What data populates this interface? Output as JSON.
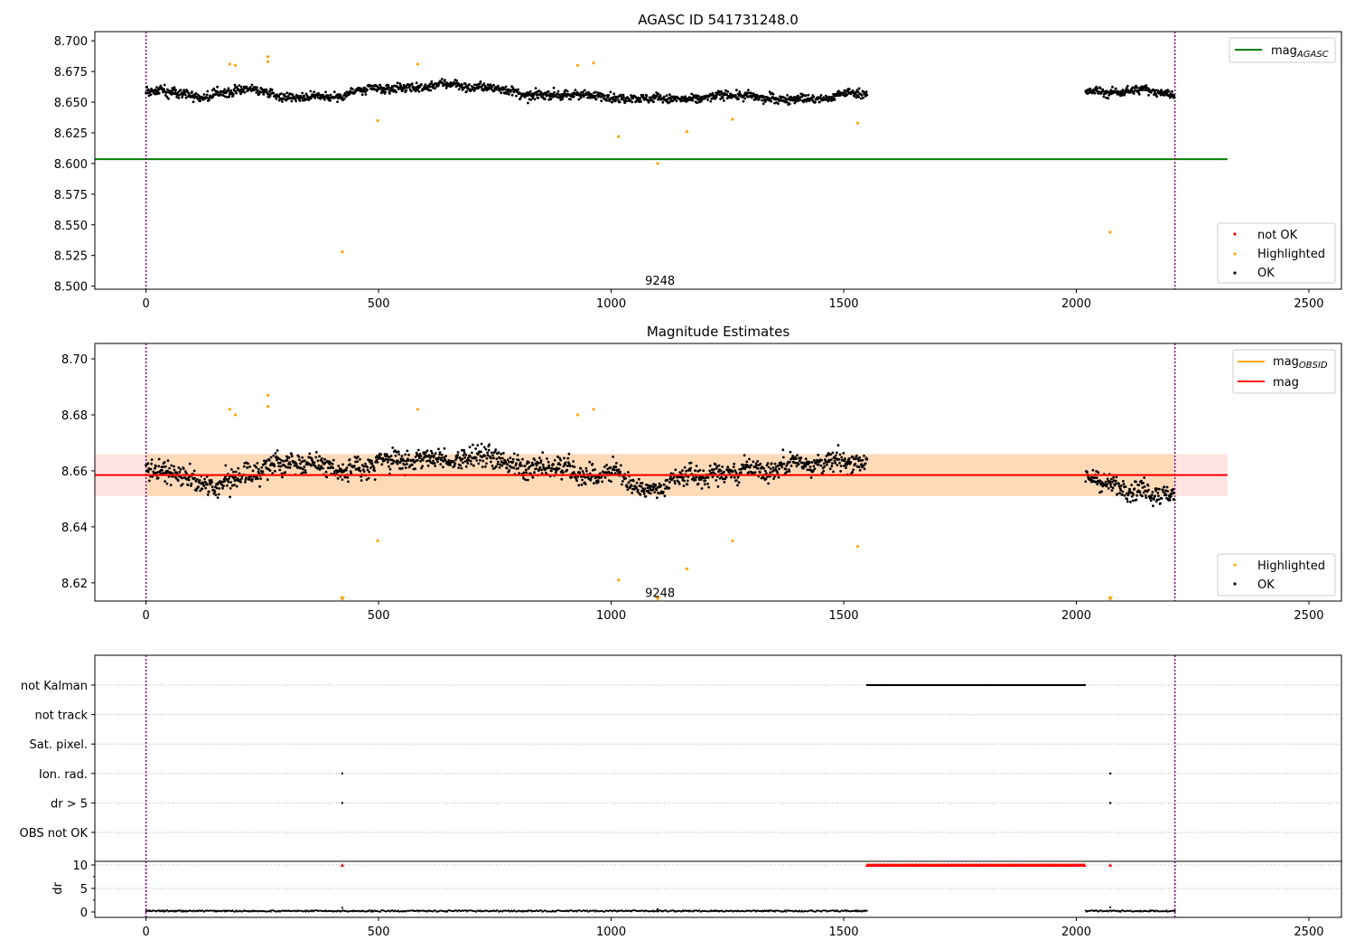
{
  "chart_data": [
    {
      "type": "scatter",
      "title": "AGASC ID 541731248.0",
      "xlabel": "",
      "ylabel": "",
      "xlim": [
        -110,
        2570
      ],
      "ylim": [
        8.4975,
        8.7075
      ],
      "xticks": [
        0,
        500,
        1000,
        1500,
        2000,
        2500
      ],
      "yticks": [
        8.5,
        8.525,
        8.55,
        8.575,
        8.6,
        8.625,
        8.65,
        8.675,
        8.7
      ],
      "ytick_labels": [
        "8.500",
        "8.525",
        "8.550",
        "8.575",
        "8.600",
        "8.625",
        "8.650",
        "8.675",
        "8.700"
      ],
      "obsid_boundaries": [
        0,
        2212
      ],
      "obsid_annotation": {
        "text": "9248",
        "x": 1105,
        "y": 8.505
      },
      "series": [
        {
          "name": "mag",
          "sub": "AGASC",
          "type": "line",
          "color": "#008000",
          "x": [
            -110,
            2325
          ],
          "y": [
            8.6035,
            8.6035
          ]
        },
        {
          "name": "not OK",
          "type": "scatter",
          "color": "#ff0000",
          "points": []
        },
        {
          "name": "Highlighted",
          "type": "scatter",
          "color": "#ffa500",
          "points": [
            [
              180,
              8.681
            ],
            [
              192,
              8.68
            ],
            [
              262,
              8.687
            ],
            [
              262,
              8.683
            ],
            [
              422,
              8.528
            ],
            [
              498,
              8.635
            ],
            [
              584,
              8.681
            ],
            [
              928,
              8.68
            ],
            [
              962,
              8.682
            ],
            [
              1016,
              8.622
            ],
            [
              1100,
              8.6
            ],
            [
              1163,
              8.626
            ],
            [
              1261,
              8.636
            ],
            [
              1530,
              8.633
            ],
            [
              2073,
              8.544
            ]
          ]
        },
        {
          "name": "OK",
          "type": "scatter",
          "color": "#000000",
          "segments": [
            [
              0,
              920,
              8.6595,
              0.008
            ],
            [
              920,
              1550,
              8.658,
              0.0075
            ],
            [
              2020,
              2212,
              8.657,
              0.0075
            ]
          ]
        }
      ],
      "legends": [
        {
          "position": "upper right",
          "entries": [
            "mag_AGASC"
          ]
        },
        {
          "position": "lower right",
          "entries": [
            "not OK",
            "Highlighted",
            "OK"
          ]
        }
      ]
    },
    {
      "type": "scatter",
      "title": "Magnitude Estimates",
      "xlabel": "",
      "ylabel": "",
      "xlim": [
        -110,
        2570
      ],
      "ylim": [
        8.6135,
        8.7055
      ],
      "xticks": [
        0,
        500,
        1000,
        1500,
        2000,
        2500
      ],
      "yticks": [
        8.62,
        8.64,
        8.66,
        8.68,
        8.7
      ],
      "ytick_labels": [
        "8.62",
        "8.64",
        "8.66",
        "8.68",
        "8.70"
      ],
      "obsid_boundaries": [
        0,
        2212
      ],
      "obsid_annotation": {
        "text": "9248",
        "x": 1105,
        "y": 8.6165
      },
      "mag_band": {
        "center": 8.6585,
        "low": 8.651,
        "high": 8.666,
        "x": [
          -110,
          2325
        ]
      },
      "series": [
        {
          "name": "mag",
          "sub": "OBSID",
          "type": "line",
          "color": "#ffa500",
          "x": [
            0,
            2212
          ],
          "y": [
            8.6585,
            8.6585
          ]
        },
        {
          "name": "mag",
          "type": "line",
          "color": "#ff0000",
          "x": [
            -110,
            2325
          ],
          "y": [
            8.6585,
            8.6585
          ]
        },
        {
          "name": "Highlighted",
          "type": "scatter",
          "color": "#ffa500",
          "points": [
            [
              180,
              8.682
            ],
            [
              192,
              8.68
            ],
            [
              262,
              8.687
            ],
            [
              262,
              8.683
            ],
            [
              498,
              8.635
            ],
            [
              584,
              8.682
            ],
            [
              928,
              8.68
            ],
            [
              962,
              8.682
            ],
            [
              1016,
              8.621
            ],
            [
              1163,
              8.625
            ],
            [
              1261,
              8.635
            ],
            [
              1530,
              8.633
            ]
          ],
          "clipped_below": [
            422,
            1100,
            2073
          ]
        },
        {
          "name": "OK",
          "type": "scatter",
          "color": "#000000",
          "segments": [
            [
              0,
              920,
              8.6595,
              0.008
            ],
            [
              920,
              1550,
              8.658,
              0.0075
            ],
            [
              2020,
              2212,
              8.657,
              0.0075
            ]
          ]
        }
      ],
      "legends": [
        {
          "position": "upper right",
          "entries": [
            "mag_OBSID",
            "mag"
          ]
        },
        {
          "position": "lower right",
          "entries": [
            "Highlighted",
            "OK"
          ]
        }
      ]
    },
    {
      "type": "scatter",
      "title": "",
      "xlabel": "",
      "ylabel": "",
      "xlim": [
        -110,
        2570
      ],
      "xticks": [
        0,
        500,
        1000,
        1500,
        2000,
        2500
      ],
      "obsid_boundaries": [
        0,
        2212
      ],
      "flags": [
        "not Kalman",
        "not track",
        "Sat. pixel.",
        "Ion. rad.",
        "dr > 5",
        "OBS not OK"
      ],
      "flag_points": {
        "not Kalman": [
          [
            1550,
            2020
          ]
        ],
        "not track": [],
        "Sat. pixel.": [],
        "Ion. rad.": [
          422,
          2073
        ],
        "dr > 5": [
          422,
          2073
        ],
        "OBS not OK": []
      }
    },
    {
      "type": "scatter",
      "title": "",
      "xlabel": "",
      "ylabel": "dr",
      "xlim": [
        -110,
        2570
      ],
      "ylim": [
        -0.5,
        10.5
      ],
      "xticks": [
        0,
        500,
        1000,
        1500,
        2000,
        2500
      ],
      "yticks": [
        0,
        5,
        10
      ],
      "obsid_boundaries": [
        0,
        2212
      ],
      "series": [
        {
          "name": "dr",
          "type": "scatter",
          "color": "#000000",
          "range": [
            [
              0,
              1550
            ],
            [
              2020,
              2212
            ]
          ],
          "typical": 0.2,
          "spikes": [
            [
              422,
              0.9
            ],
            [
              1100,
              0.6
            ],
            [
              2073,
              1.0
            ]
          ]
        },
        {
          "name": "dr clipped",
          "type": "marker",
          "color": "#ff0000",
          "marker": "triangle-up",
          "y": 10,
          "x": [
            422,
            2073
          ],
          "ranges": [
            [
              1550,
              2020
            ]
          ]
        }
      ]
    }
  ],
  "colors": {
    "ok": "#000000",
    "highlighted": "#ffa500",
    "not_ok": "#ff0000",
    "agasc_line": "#008000",
    "mag_line": "#ff0000",
    "band_fill": "#ffdab9",
    "band_fill_edge": "#ffe4e1",
    "boundary": "#800080",
    "grid": "#b0b0b0"
  }
}
